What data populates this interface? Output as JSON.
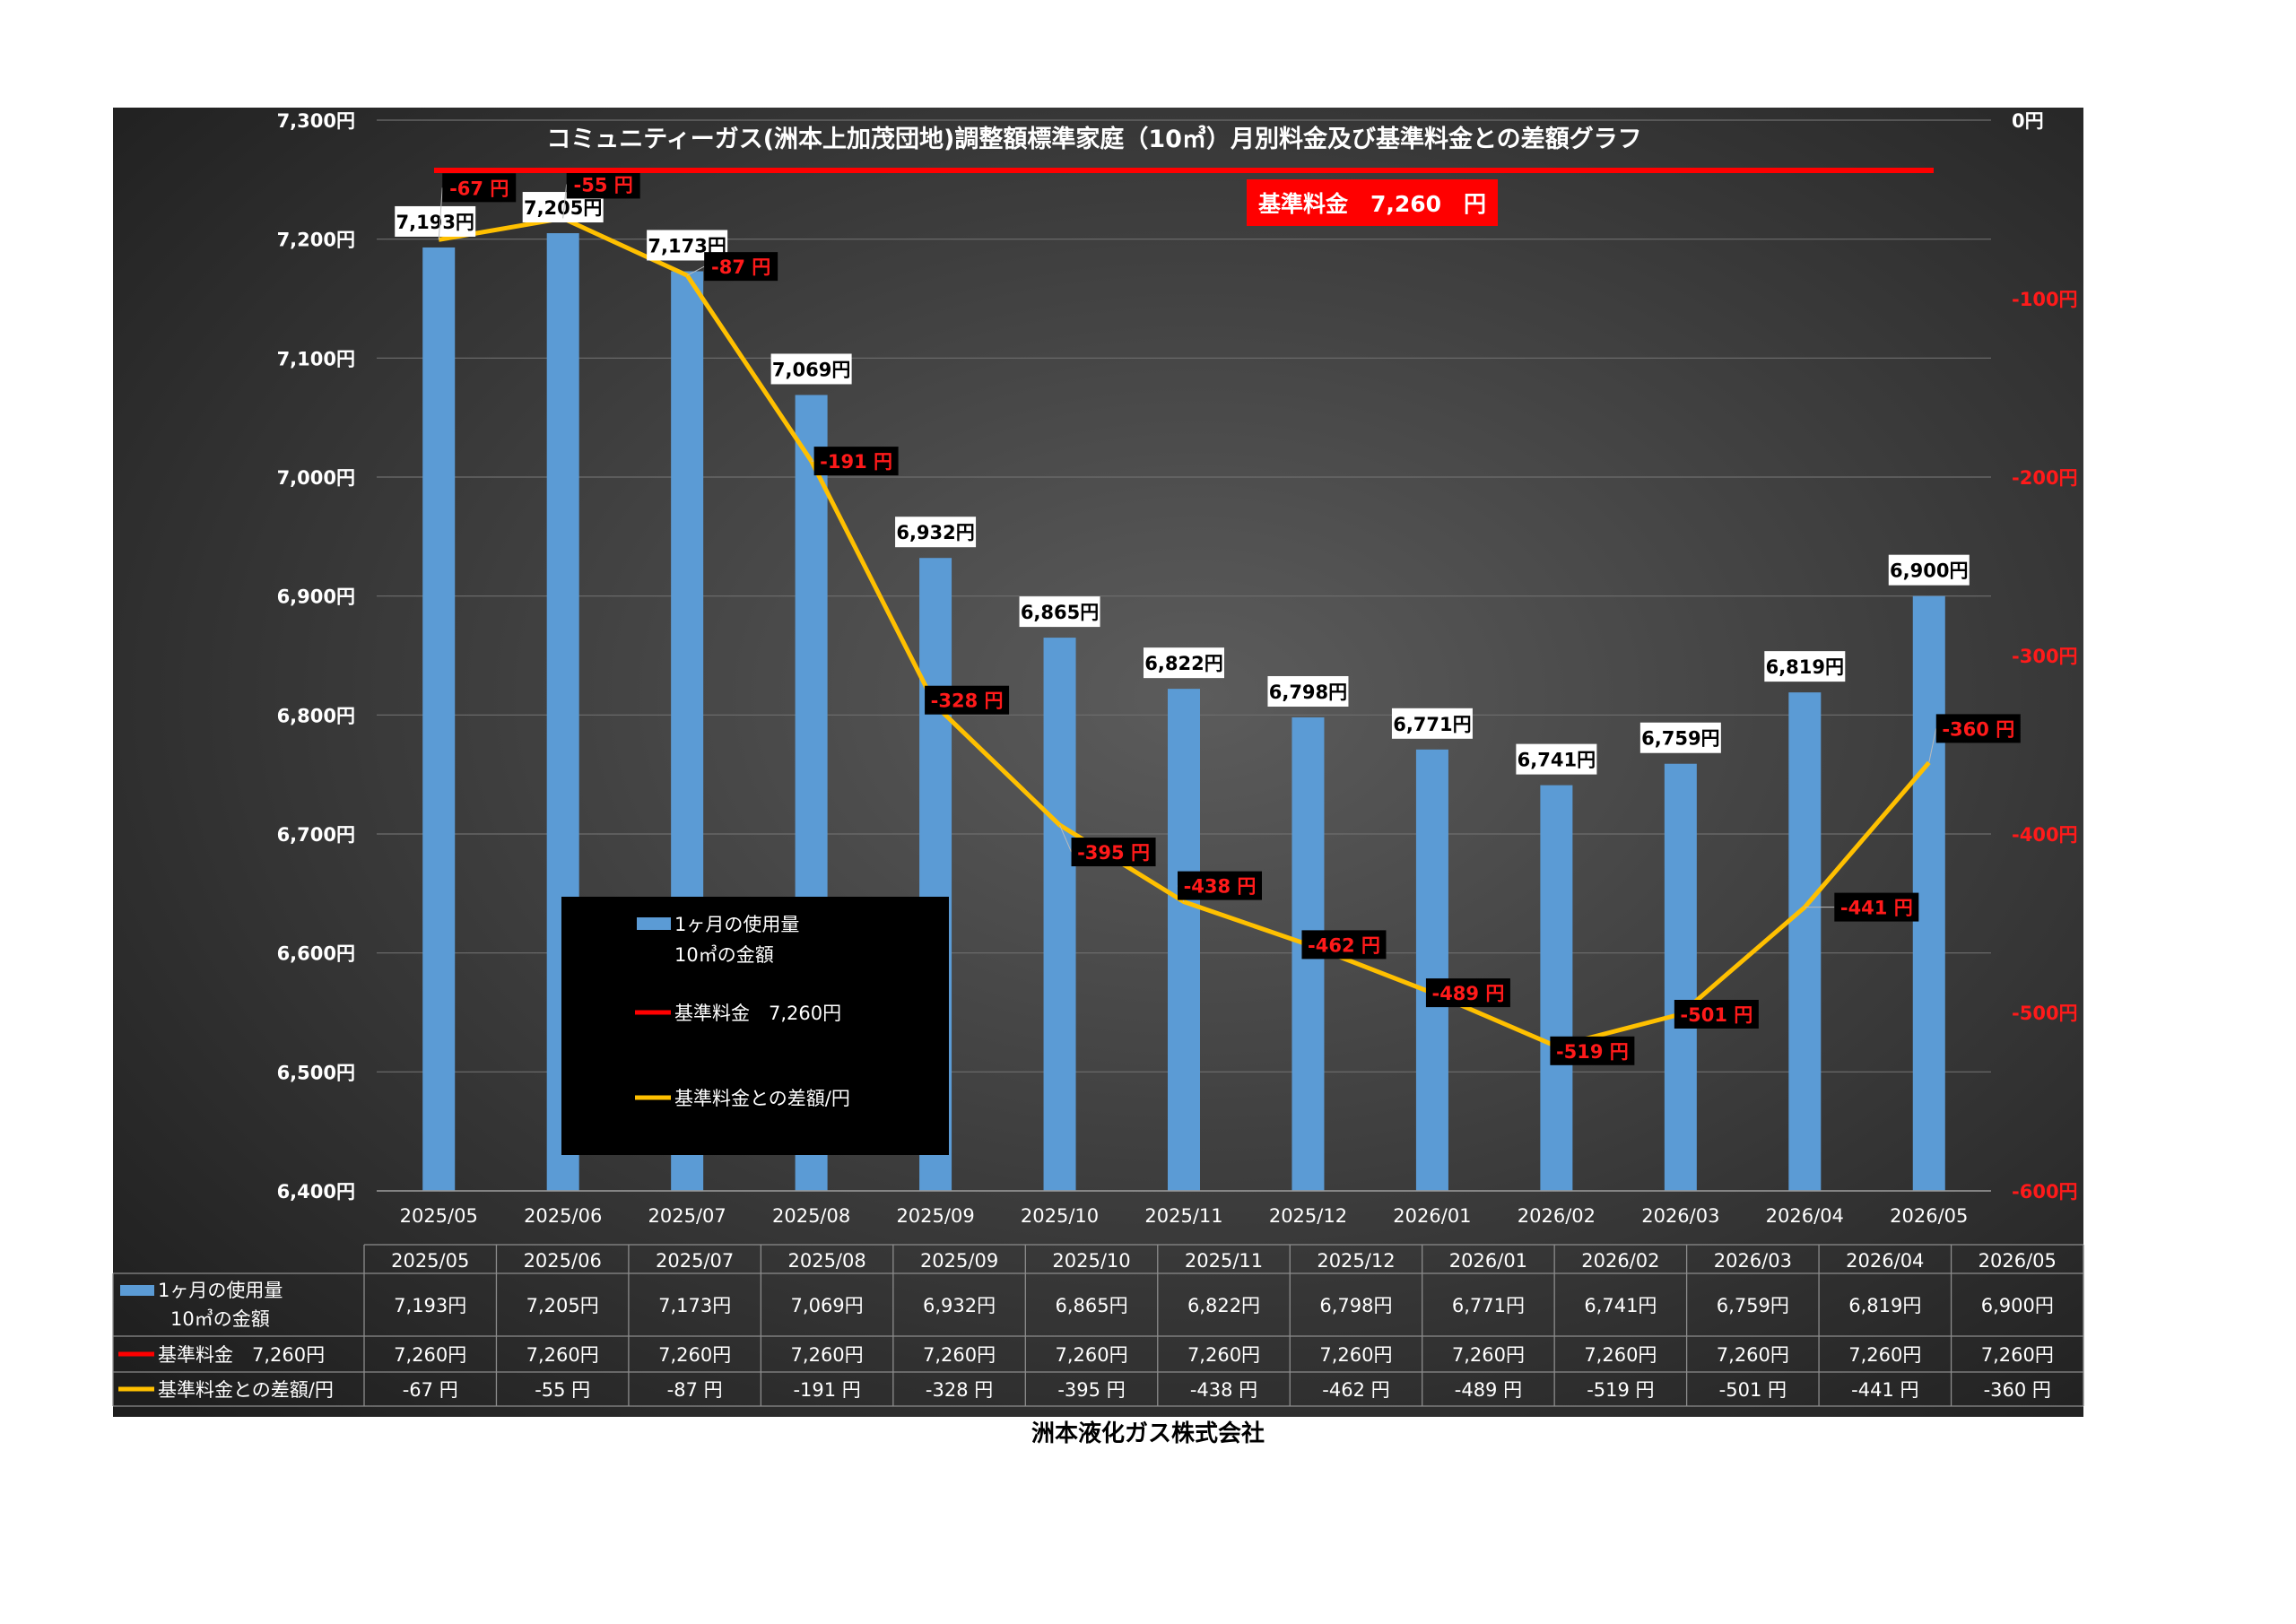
{
  "chart_data": {
    "type": "bar",
    "title": "コミュニティーガス(洲本上加茂団地)調整額標準家庭（10㎥）月別料金及び基準料金との差額グラフ",
    "base_price_label": "基準料金　7,260　円",
    "categories": [
      "2025/05",
      "2025/06",
      "2025/07",
      "2025/08",
      "2025/09",
      "2025/10",
      "2025/11",
      "2025/12",
      "2026/01",
      "2026/02",
      "2026/03",
      "2026/04",
      "2026/05"
    ],
    "series": [
      {
        "name_line1": "1ヶ月の使用量",
        "name_line2": "10㎥の金額",
        "type": "bar",
        "axis": "left",
        "color": "#5b9bd5",
        "values": [
          7193,
          7205,
          7173,
          7069,
          6932,
          6865,
          6822,
          6798,
          6771,
          6741,
          6759,
          6819,
          6900
        ],
        "labels": [
          "7,193円",
          "7,205円",
          "7,173円",
          "7,069円",
          "6,932円",
          "6,865円",
          "6,822円",
          "6,798円",
          "6,771円",
          "6,741円",
          "6,759円",
          "6,819円",
          "6,900円"
        ]
      },
      {
        "name": "基準料金　7,260円",
        "type": "line",
        "axis": "left",
        "color": "#ff0000",
        "values": [
          7260,
          7260,
          7260,
          7260,
          7260,
          7260,
          7260,
          7260,
          7260,
          7260,
          7260,
          7260,
          7260
        ],
        "labels": [
          "7,260円",
          "7,260円",
          "7,260円",
          "7,260円",
          "7,260円",
          "7,260円",
          "7,260円",
          "7,260円",
          "7,260円",
          "7,260円",
          "7,260円",
          "7,260円",
          "7,260円"
        ]
      },
      {
        "name": "基準料金との差額/円",
        "type": "line",
        "axis": "right",
        "color": "#ffc000",
        "values": [
          -67,
          -55,
          -87,
          -191,
          -328,
          -395,
          -438,
          -462,
          -489,
          -519,
          -501,
          -441,
          -360
        ],
        "labels": [
          "-67 円",
          "-55 円",
          "-87 円",
          "-191 円",
          "-328 円",
          "-395 円",
          "-438 円",
          "-462 円",
          "-489 円",
          "-519 円",
          "-501 円",
          "-441 円",
          "-360 円"
        ],
        "chart_labels": [
          "-67 円",
          "-55 円",
          "-87 円",
          "-191 円",
          "-328 円",
          "-395 円",
          "-438 円",
          "-462 円",
          "-489 円",
          "-519 円",
          "-501 円",
          "-441 円",
          "-360 円"
        ]
      }
    ],
    "y_left": {
      "range": [
        6400,
        7300
      ],
      "ticks": [
        6400,
        6500,
        6600,
        6700,
        6800,
        6900,
        7000,
        7100,
        7200,
        7300
      ],
      "tick_labels": [
        "6,400円",
        "6,500円",
        "6,600円",
        "6,700円",
        "6,800円",
        "6,900円",
        "7,000円",
        "7,100円",
        "7,200円",
        "7,300円"
      ]
    },
    "y_right": {
      "range": [
        -600,
        0
      ],
      "ticks": [
        -600,
        -500,
        -400,
        -300,
        -200,
        -100,
        0
      ],
      "tick_labels": [
        "-600円",
        "-500円",
        "-400円",
        "-300円",
        "-200円",
        "-100円",
        "0円"
      ]
    },
    "legend": {
      "placement": "lower-left inside plot",
      "bar_line1": "1ヶ月の使用量",
      "bar_line2": "10㎥の金額",
      "base_line": "基準料金　7,260円",
      "diff_line": "基準料金との差額/円"
    },
    "table": {
      "row1_label_line1": "1ヶ月の使用量",
      "row1_label_line2": "10㎥の金額",
      "row2_label": "基準料金　7,260円",
      "row3_label": "基準料金との差額/円"
    },
    "grid": true,
    "background": "dark gradient"
  },
  "footer": {
    "company": "洲本液化ガス株式会社"
  },
  "colors": {
    "bar": "#5b9bd5",
    "base_line": "#ff0000",
    "diff_line": "#ffc000",
    "chart_bg_center": "#5a5a5a",
    "chart_bg_edge": "#222222"
  }
}
